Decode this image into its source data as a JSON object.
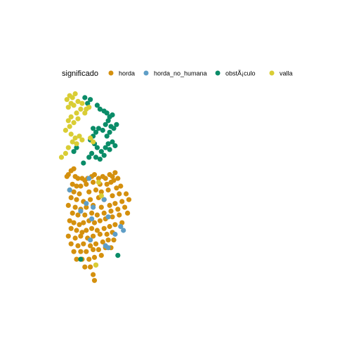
{
  "chart_data": {
    "type": "scatter",
    "title": "",
    "xlabel": "",
    "ylabel": "",
    "axes_visible": false,
    "grid": false,
    "xlim": [
      0,
      1
    ],
    "ylim": [
      0,
      1
    ],
    "legend": {
      "title": "significado",
      "position": "top",
      "entries": [
        {
          "label": "horda",
          "color": "#D4900E"
        },
        {
          "label": "horda_no_humana",
          "color": "#5F9EC7"
        },
        {
          "label": "obstÃ¡culo",
          "color": "#0A8C68"
        },
        {
          "label": "valla",
          "color": "#D9CD34"
        }
      ]
    },
    "series": [
      {
        "name": "horda",
        "color": "#D4900E",
        "points": [
          [
            0.22,
            0.41
          ],
          [
            0.2,
            0.42
          ],
          [
            0.18,
            0.44
          ],
          [
            0.17,
            0.45
          ],
          [
            0.23,
            0.45
          ],
          [
            0.25,
            0.46
          ],
          [
            0.28,
            0.46
          ],
          [
            0.3,
            0.47
          ],
          [
            0.32,
            0.46
          ],
          [
            0.35,
            0.45
          ],
          [
            0.37,
            0.44
          ],
          [
            0.4,
            0.46
          ],
          [
            0.43,
            0.45
          ],
          [
            0.45,
            0.46
          ],
          [
            0.48,
            0.44
          ],
          [
            0.5,
            0.45
          ],
          [
            0.52,
            0.43
          ],
          [
            0.21,
            0.49
          ],
          [
            0.24,
            0.5
          ],
          [
            0.27,
            0.5
          ],
          [
            0.31,
            0.49
          ],
          [
            0.36,
            0.48
          ],
          [
            0.41,
            0.49
          ],
          [
            0.46,
            0.49
          ],
          [
            0.49,
            0.48
          ],
          [
            0.51,
            0.47
          ],
          [
            0.54,
            0.46
          ],
          [
            0.19,
            0.52
          ],
          [
            0.22,
            0.53
          ],
          [
            0.26,
            0.54
          ],
          [
            0.33,
            0.53
          ],
          [
            0.38,
            0.52
          ],
          [
            0.42,
            0.53
          ],
          [
            0.47,
            0.52
          ],
          [
            0.53,
            0.51
          ],
          [
            0.56,
            0.5
          ],
          [
            0.2,
            0.56
          ],
          [
            0.24,
            0.57
          ],
          [
            0.29,
            0.58
          ],
          [
            0.34,
            0.57
          ],
          [
            0.4,
            0.56
          ],
          [
            0.44,
            0.57
          ],
          [
            0.5,
            0.55
          ],
          [
            0.55,
            0.54
          ],
          [
            0.6,
            0.54
          ],
          [
            0.18,
            0.6
          ],
          [
            0.23,
            0.61
          ],
          [
            0.27,
            0.62
          ],
          [
            0.31,
            0.61
          ],
          [
            0.36,
            0.6
          ],
          [
            0.42,
            0.61
          ],
          [
            0.48,
            0.6
          ],
          [
            0.52,
            0.59
          ],
          [
            0.57,
            0.58
          ],
          [
            0.62,
            0.57
          ],
          [
            0.21,
            0.64
          ],
          [
            0.25,
            0.65
          ],
          [
            0.3,
            0.65
          ],
          [
            0.35,
            0.64
          ],
          [
            0.39,
            0.65
          ],
          [
            0.44,
            0.64
          ],
          [
            0.49,
            0.63
          ],
          [
            0.54,
            0.62
          ],
          [
            0.59,
            0.61
          ],
          [
            0.19,
            0.68
          ],
          [
            0.22,
            0.69
          ],
          [
            0.26,
            0.7
          ],
          [
            0.29,
            0.69
          ],
          [
            0.33,
            0.68
          ],
          [
            0.37,
            0.69
          ],
          [
            0.41,
            0.68
          ],
          [
            0.45,
            0.67
          ],
          [
            0.5,
            0.66
          ],
          [
            0.55,
            0.65
          ],
          [
            0.61,
            0.64
          ],
          [
            0.2,
            0.72
          ],
          [
            0.24,
            0.73
          ],
          [
            0.28,
            0.74
          ],
          [
            0.31,
            0.73
          ],
          [
            0.35,
            0.72
          ],
          [
            0.39,
            0.73
          ],
          [
            0.44,
            0.72
          ],
          [
            0.48,
            0.71
          ],
          [
            0.52,
            0.7
          ],
          [
            0.57,
            0.69
          ],
          [
            0.18,
            0.76
          ],
          [
            0.23,
            0.77
          ],
          [
            0.27,
            0.76
          ],
          [
            0.32,
            0.77
          ],
          [
            0.36,
            0.76
          ],
          [
            0.41,
            0.75
          ],
          [
            0.46,
            0.75
          ],
          [
            0.5,
            0.74
          ],
          [
            0.2,
            0.8
          ],
          [
            0.25,
            0.81
          ],
          [
            0.29,
            0.8
          ],
          [
            0.34,
            0.81
          ],
          [
            0.38,
            0.8
          ],
          [
            0.43,
            0.79
          ],
          [
            0.47,
            0.78
          ],
          [
            0.51,
            0.78
          ],
          [
            0.22,
            0.84
          ],
          [
            0.27,
            0.84
          ],
          [
            0.31,
            0.84
          ],
          [
            0.36,
            0.83
          ],
          [
            0.4,
            0.83
          ],
          [
            0.45,
            0.82
          ],
          [
            0.49,
            0.82
          ],
          [
            0.24,
            0.88
          ],
          [
            0.28,
            0.88
          ],
          [
            0.33,
            0.88
          ],
          [
            0.37,
            0.87
          ],
          [
            0.42,
            0.86
          ],
          [
            0.3,
            0.92
          ],
          [
            0.34,
            0.92
          ],
          [
            0.38,
            0.91
          ],
          [
            0.36,
            0.96
          ],
          [
            0.37,
            0.99
          ]
        ]
      },
      {
        "name": "horda_no_humana",
        "color": "#5F9EC7",
        "points": [
          [
            0.19,
            0.52
          ],
          [
            0.33,
            0.46
          ],
          [
            0.44,
            0.57
          ],
          [
            0.27,
            0.63
          ],
          [
            0.35,
            0.67
          ],
          [
            0.47,
            0.66
          ],
          [
            0.56,
            0.71
          ],
          [
            0.58,
            0.73
          ],
          [
            0.52,
            0.75
          ],
          [
            0.47,
            0.82
          ],
          [
            0.45,
            0.81
          ],
          [
            0.34,
            0.78
          ],
          [
            0.36,
            0.61
          ],
          [
            0.31,
            0.59
          ]
        ]
      },
      {
        "name": "obstÃ¡culo",
        "color": "#0A8C68",
        "points": [
          [
            0.3,
            0.04
          ],
          [
            0.32,
            0.07
          ],
          [
            0.34,
            0.05
          ],
          [
            0.39,
            0.08
          ],
          [
            0.41,
            0.1
          ],
          [
            0.44,
            0.11
          ],
          [
            0.46,
            0.12
          ],
          [
            0.48,
            0.14
          ],
          [
            0.5,
            0.13
          ],
          [
            0.47,
            0.16
          ],
          [
            0.45,
            0.18
          ],
          [
            0.49,
            0.19
          ],
          [
            0.51,
            0.2
          ],
          [
            0.53,
            0.18
          ],
          [
            0.48,
            0.22
          ],
          [
            0.46,
            0.24
          ],
          [
            0.43,
            0.21
          ],
          [
            0.4,
            0.2
          ],
          [
            0.38,
            0.22
          ],
          [
            0.36,
            0.24
          ],
          [
            0.34,
            0.26
          ],
          [
            0.37,
            0.28
          ],
          [
            0.39,
            0.3
          ],
          [
            0.42,
            0.32
          ],
          [
            0.45,
            0.3
          ],
          [
            0.47,
            0.28
          ],
          [
            0.5,
            0.27
          ],
          [
            0.52,
            0.29
          ],
          [
            0.48,
            0.31
          ],
          [
            0.44,
            0.34
          ],
          [
            0.41,
            0.36
          ],
          [
            0.38,
            0.35
          ],
          [
            0.35,
            0.33
          ],
          [
            0.33,
            0.35
          ],
          [
            0.36,
            0.2
          ],
          [
            0.29,
            0.38
          ],
          [
            0.24,
            0.3
          ],
          [
            0.22,
            0.32
          ],
          [
            0.27,
            0.88
          ],
          [
            0.54,
            0.86
          ]
        ]
      },
      {
        "name": "valla",
        "color": "#D9CD34",
        "points": [
          [
            0.17,
            0.05
          ],
          [
            0.19,
            0.03
          ],
          [
            0.21,
            0.04
          ],
          [
            0.23,
            0.02
          ],
          [
            0.2,
            0.07
          ],
          [
            0.18,
            0.09
          ],
          [
            0.22,
            0.08
          ],
          [
            0.25,
            0.06
          ],
          [
            0.28,
            0.07
          ],
          [
            0.27,
            0.1
          ],
          [
            0.24,
            0.12
          ],
          [
            0.2,
            0.14
          ],
          [
            0.18,
            0.16
          ],
          [
            0.22,
            0.17
          ],
          [
            0.25,
            0.15
          ],
          [
            0.19,
            0.19
          ],
          [
            0.16,
            0.21
          ],
          [
            0.2,
            0.23
          ],
          [
            0.23,
            0.25
          ],
          [
            0.26,
            0.24
          ],
          [
            0.21,
            0.27
          ],
          [
            0.18,
            0.3
          ],
          [
            0.24,
            0.28
          ],
          [
            0.28,
            0.26
          ],
          [
            0.31,
            0.1
          ],
          [
            0.33,
            0.09
          ],
          [
            0.3,
            0.12
          ],
          [
            0.34,
            0.25
          ],
          [
            0.36,
            0.27
          ],
          [
            0.13,
            0.35
          ],
          [
            0.16,
            0.33
          ],
          [
            0.4,
            0.48
          ],
          [
            0.38,
            0.91
          ],
          [
            0.42,
            0.55
          ]
        ]
      }
    ]
  }
}
